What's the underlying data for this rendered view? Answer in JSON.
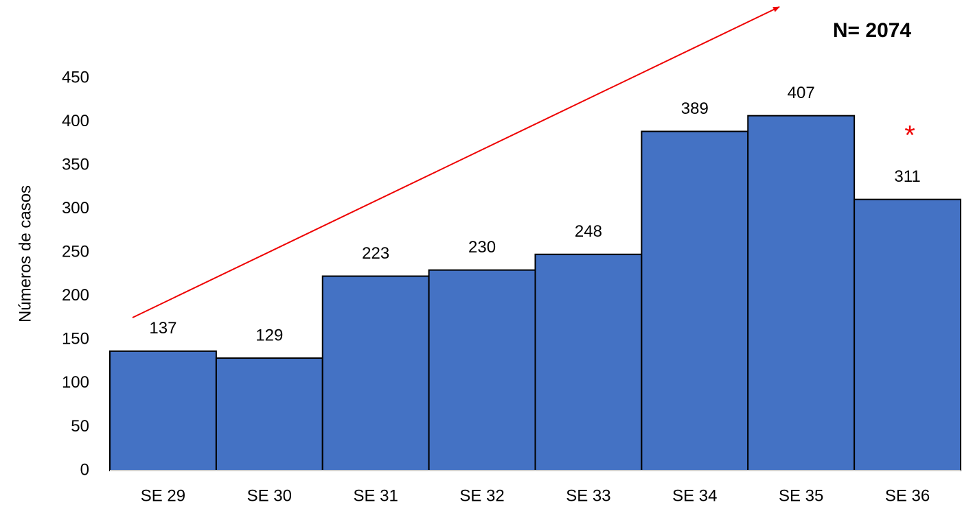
{
  "chart_data": {
    "type": "bar",
    "y_label": "Números de casos",
    "annotations": [
      "N= 2074",
      "*"
    ],
    "categories": [
      "SE 29",
      "SE 30",
      "SE 31",
      "SE 32",
      "SE 33",
      "SE 34",
      "SE 35",
      "SE 36"
    ],
    "values": [
      137,
      129,
      223,
      230,
      248,
      389,
      407,
      311
    ],
    "color": "#4472c4",
    "ylim": [
      0,
      450
    ],
    "yticks": [
      0,
      50,
      100,
      150,
      200,
      250,
      300,
      350,
      400,
      450
    ],
    "grid": false
  }
}
